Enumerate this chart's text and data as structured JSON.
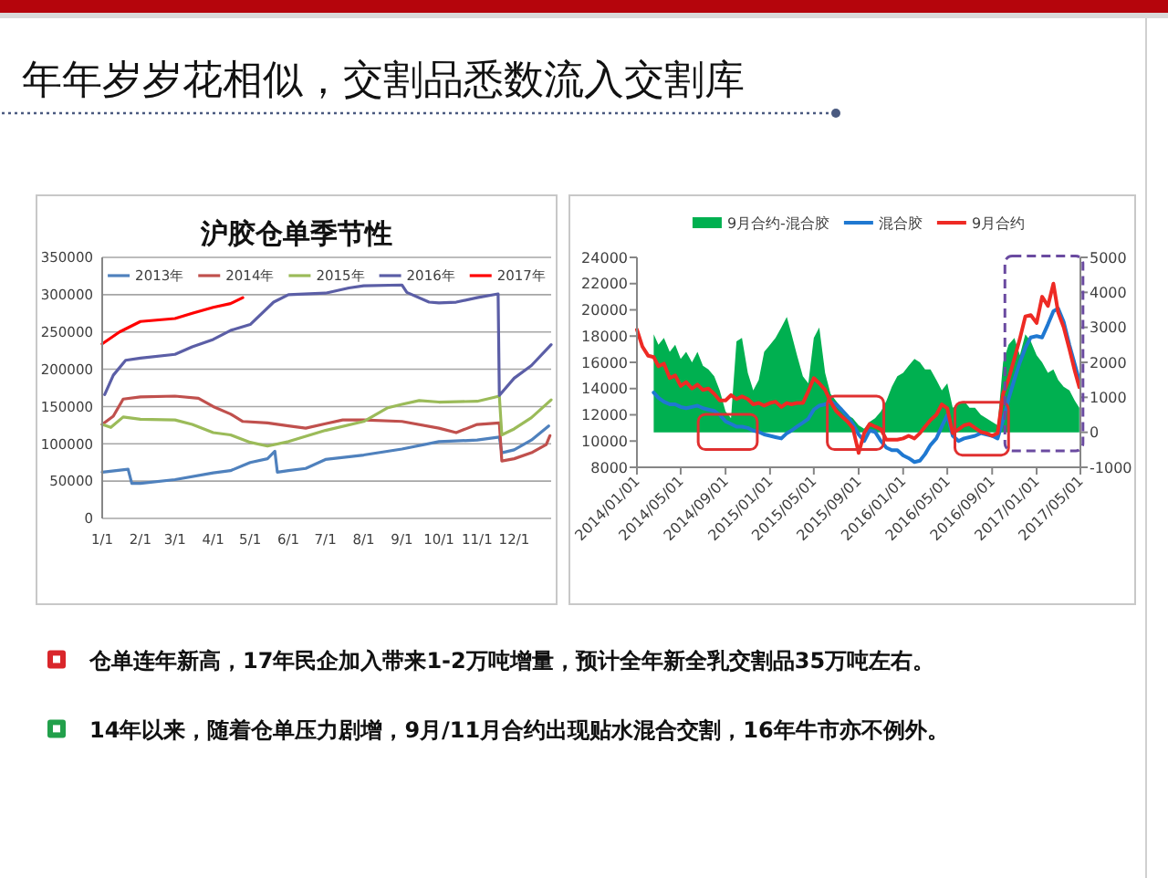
{
  "chart_data": [
    {
      "type": "other",
      "title": "年年岁岁花相似，交割品悉数流入交割库"
    },
    {
      "type": "line",
      "title": "沪胶仓单季节性",
      "xlim": [
        "--01-01",
        "--12-31"
      ],
      "xticks": [
        {
          "value": "--01-01",
          "label": "1/1"
        },
        {
          "value": "--02-01",
          "label": "2/1"
        },
        {
          "value": "--03-01",
          "label": "3/1"
        },
        {
          "value": "--04-01",
          "label": "4/1"
        },
        {
          "value": "--05-01",
          "label": "5/1"
        },
        {
          "value": "--06-01",
          "label": "6/1"
        },
        {
          "value": "--07-01",
          "label": "7/1"
        },
        {
          "value": "--08-01",
          "label": "8/1"
        },
        {
          "value": "--09-01",
          "label": "9/1"
        },
        {
          "value": "--10-01",
          "label": "10/1"
        },
        {
          "value": "--11-01",
          "label": "11/1"
        },
        {
          "value": "--12-01",
          "label": "12/1"
        }
      ],
      "ylim": [
        0,
        350000
      ],
      "yticks": [
        0,
        50000,
        100000,
        150000,
        200000,
        250000,
        300000,
        350000
      ],
      "grid": "y",
      "legend": "top",
      "series": [
        {
          "name": "2013年",
          "color": "#4f81bd",
          "x": [
            "--01-01",
            "--01-22",
            "--01-25",
            "--02-01",
            "--03-01",
            "--04-01",
            "--04-15",
            "--05-01",
            "--05-15",
            "--05-21",
            "--05-23",
            "--06-01",
            "--06-15",
            "--07-01",
            "--08-01",
            "--09-01",
            "--10-01",
            "--11-01",
            "--11-19",
            "--11-21",
            "--12-01",
            "--12-15",
            "--12-29"
          ],
          "values": [
            62000,
            66000,
            47000,
            47000,
            52000,
            61000,
            64000,
            75000,
            80000,
            90000,
            62000,
            64000,
            67000,
            79000,
            85000,
            93000,
            103000,
            105000,
            109000,
            88000,
            92000,
            105000,
            124000
          ]
        },
        {
          "name": "2014年",
          "color": "#c0504d",
          "x": [
            "--01-01",
            "--01-10",
            "--01-18",
            "--02-01",
            "--03-01",
            "--03-20",
            "--04-01",
            "--04-15",
            "--04-25",
            "--05-15",
            "--06-01",
            "--06-15",
            "--07-01",
            "--07-15",
            "--08-01",
            "--09-01",
            "--10-01",
            "--10-15",
            "--11-01",
            "--11-19",
            "--11-21",
            "--12-01",
            "--12-15",
            "--12-27",
            "--12-30"
          ],
          "values": [
            126000,
            137000,
            160000,
            163000,
            164000,
            161000,
            150000,
            140000,
            130000,
            128000,
            124000,
            121000,
            127000,
            132000,
            132000,
            130000,
            121000,
            115000,
            126000,
            128000,
            77000,
            80000,
            88000,
            99000,
            111000
          ]
        },
        {
          "name": "2015年",
          "color": "#9bbb59",
          "x": [
            "--01-01",
            "--01-08",
            "--01-18",
            "--02-01",
            "--03-01",
            "--03-15",
            "--04-01",
            "--04-15",
            "--05-01",
            "--05-15",
            "--06-01",
            "--07-01",
            "--08-01",
            "--08-20",
            "--09-01",
            "--09-15",
            "--10-01",
            "--11-01",
            "--11-19",
            "--11-21",
            "--12-01",
            "--12-15",
            "--12-31"
          ],
          "values": [
            126000,
            122000,
            136000,
            133000,
            132000,
            126000,
            115000,
            112000,
            102000,
            97000,
            103000,
            118000,
            130000,
            148000,
            153000,
            158000,
            156000,
            157000,
            164000,
            112000,
            120000,
            135000,
            159000
          ]
        },
        {
          "name": "2016年",
          "color": "#5b5ea6",
          "x": [
            "--01-03",
            "--01-10",
            "--01-20",
            "--02-01",
            "--03-01",
            "--03-15",
            "--04-01",
            "--04-15",
            "--05-01",
            "--05-20",
            "--06-01",
            "--07-01",
            "--07-20",
            "--08-01",
            "--09-01",
            "--09-05",
            "--09-23",
            "--10-01",
            "--10-15",
            "--11-01",
            "--11-18",
            "--11-19",
            "--12-01",
            "--12-15",
            "--12-31"
          ],
          "values": [
            166000,
            192000,
            212000,
            215000,
            220000,
            230000,
            240000,
            252000,
            260000,
            290000,
            300000,
            302000,
            309000,
            312000,
            313000,
            303000,
            290000,
            289000,
            290000,
            296000,
            301000,
            165000,
            188000,
            205000,
            233000
          ]
        },
        {
          "name": "2017年",
          "color": "#ff0000",
          "x": [
            "--01-01",
            "--01-15",
            "--02-01",
            "--03-01",
            "--03-15",
            "--04-01",
            "--04-15",
            "--04-25"
          ],
          "values": [
            234000,
            250000,
            264000,
            268000,
            275000,
            283000,
            288000,
            296000
          ]
        }
      ]
    },
    {
      "type": "line",
      "xlim": [
        "2014-01-01",
        "2017-05-01"
      ],
      "xticks": [
        {
          "value": "2014-01-01",
          "label": "2014/01/01"
        },
        {
          "value": "2014-05-01",
          "label": "2014/05/01"
        },
        {
          "value": "2014-09-01",
          "label": "2014/09/01"
        },
        {
          "value": "2015-01-01",
          "label": "2015/01/01"
        },
        {
          "value": "2015-05-01",
          "label": "2015/05/01"
        },
        {
          "value": "2015-09-01",
          "label": "2015/09/01"
        },
        {
          "value": "2016-01-01",
          "label": "2016/01/01"
        },
        {
          "value": "2016-05-01",
          "label": "2016/05/01"
        },
        {
          "value": "2016-09-01",
          "label": "2016/09/01"
        },
        {
          "value": "2017-01-01",
          "label": "2017/01/01"
        },
        {
          "value": "2017-05-01",
          "label": "2017/05/01"
        }
      ],
      "ylim": [
        8000,
        24000
      ],
      "yticks": [
        8000,
        10000,
        12000,
        14000,
        16000,
        18000,
        20000,
        22000,
        24000
      ],
      "y2lim": [
        -1000,
        5000
      ],
      "y2ticks": [
        -1000,
        0,
        1000,
        2000,
        3000,
        4000,
        5000
      ],
      "legend": "top",
      "x": [
        "2014-01-01",
        "2014-01-16",
        "2014-02-01",
        "2014-02-16",
        "2014-03-01",
        "2014-03-16",
        "2014-04-01",
        "2014-04-16",
        "2014-05-01",
        "2014-05-16",
        "2014-06-01",
        "2014-06-16",
        "2014-07-01",
        "2014-07-16",
        "2014-08-01",
        "2014-08-16",
        "2014-09-01",
        "2014-09-16",
        "2014-10-01",
        "2014-10-16",
        "2014-11-01",
        "2014-11-16",
        "2014-12-01",
        "2014-12-16",
        "2015-01-01",
        "2015-01-16",
        "2015-02-01",
        "2015-02-16",
        "2015-03-01",
        "2015-03-16",
        "2015-04-01",
        "2015-04-16",
        "2015-05-01",
        "2015-05-16",
        "2015-06-01",
        "2015-06-16",
        "2015-07-01",
        "2015-07-16",
        "2015-08-01",
        "2015-08-16",
        "2015-09-01",
        "2015-09-16",
        "2015-10-01",
        "2015-10-16",
        "2015-11-01",
        "2015-11-16",
        "2015-12-01",
        "2015-12-16",
        "2016-01-01",
        "2016-01-16",
        "2016-02-01",
        "2016-02-16",
        "2016-03-01",
        "2016-03-16",
        "2016-04-01",
        "2016-04-16",
        "2016-05-01",
        "2016-05-16",
        "2016-06-01",
        "2016-06-16",
        "2016-07-01",
        "2016-07-16",
        "2016-08-01",
        "2016-08-16",
        "2016-09-01",
        "2016-09-16",
        "2016-10-01",
        "2016-10-16",
        "2016-11-01",
        "2016-11-16",
        "2016-12-01",
        "2016-12-16",
        "2017-01-01",
        "2017-01-16",
        "2017-02-01",
        "2017-02-16",
        "2017-03-01",
        "2017-03-16",
        "2017-04-01",
        "2017-04-16",
        "2017-04-28"
      ],
      "series": [
        {
          "name": "9月合约-混合胶",
          "type": "area",
          "axis": "y2",
          "color": "#00b050",
          "values": [
            null,
            null,
            null,
            2800,
            2500,
            2700,
            2300,
            2500,
            2100,
            2300,
            2000,
            2300,
            1900,
            1800,
            1600,
            1200,
            600,
            400,
            2600,
            2700,
            1700,
            1200,
            1500,
            2300,
            2500,
            2700,
            3000,
            3300,
            2800,
            2200,
            1600,
            1400,
            2700,
            3000,
            1700,
            1100,
            900,
            700,
            500,
            400,
            200,
            100,
            300,
            400,
            600,
            900,
            1300,
            1600,
            1700,
            1900,
            2100,
            2000,
            1800,
            1800,
            1500,
            1200,
            1400,
            700,
            800,
            900,
            700,
            700,
            500,
            400,
            300,
            200,
            2000,
            2500,
            2700,
            2200,
            2800,
            2600,
            2200,
            2000,
            1700,
            1800,
            1500,
            1300,
            1200,
            900,
            700
          ]
        },
        {
          "name": "混合胶",
          "color": "#1f78d1",
          "values": [
            null,
            null,
            null,
            13700,
            13300,
            13000,
            12800,
            12800,
            12600,
            12500,
            12600,
            12700,
            12500,
            12400,
            12300,
            12000,
            11500,
            11300,
            11100,
            11100,
            11000,
            10800,
            10700,
            10500,
            10400,
            10300,
            10200,
            10600,
            10800,
            11100,
            11400,
            11700,
            12400,
            12700,
            12800,
            13000,
            12800,
            12400,
            11900,
            11300,
            10500,
            10000,
            10800,
            10700,
            10000,
            9500,
            9300,
            9300,
            8900,
            8700,
            8400,
            8500,
            9000,
            9700,
            10200,
            11100,
            12000,
            10400,
            10000,
            10200,
            10300,
            10400,
            10600,
            10500,
            10400,
            10200,
            11600,
            13200,
            14700,
            16000,
            17100,
            17900,
            18000,
            17900,
            18900,
            19900,
            20100,
            19100,
            17300,
            15800,
            14600
          ]
        },
        {
          "name": "9月合约",
          "color": "#ee2a24",
          "values": [
            18500,
            17200,
            16500,
            16400,
            15700,
            15900,
            14800,
            15000,
            14200,
            14500,
            14000,
            14300,
            13900,
            14000,
            13600,
            13100,
            13100,
            13500,
            13200,
            13400,
            13200,
            12800,
            12900,
            12700,
            12900,
            13000,
            12600,
            12900,
            12800,
            12900,
            12900,
            13800,
            14800,
            14400,
            13900,
            13000,
            12300,
            11900,
            11500,
            11000,
            9100,
            10600,
            11300,
            11100,
            10900,
            10100,
            10100,
            10100,
            10200,
            10400,
            10200,
            10600,
            11100,
            11600,
            12000,
            12800,
            12500,
            10600,
            10900,
            11200,
            11300,
            11000,
            10700,
            10600,
            10400,
            10600,
            13600,
            14700,
            16300,
            17800,
            19500,
            19600,
            19000,
            21000,
            20300,
            22000,
            19800,
            18700,
            17000,
            15300,
            14100
          ]
        }
      ]
    },
    {
      "type": "other",
      "annotations": [
        "仓单连年新高，17年民企加入带来1-2万吨增量，预计全年新全乳交割品35万吨左右。",
        "14年以来，随着仓单压力剧增，9月/11月合约出现贴水混合交割，16年牛市亦不例外。"
      ]
    }
  ]
}
